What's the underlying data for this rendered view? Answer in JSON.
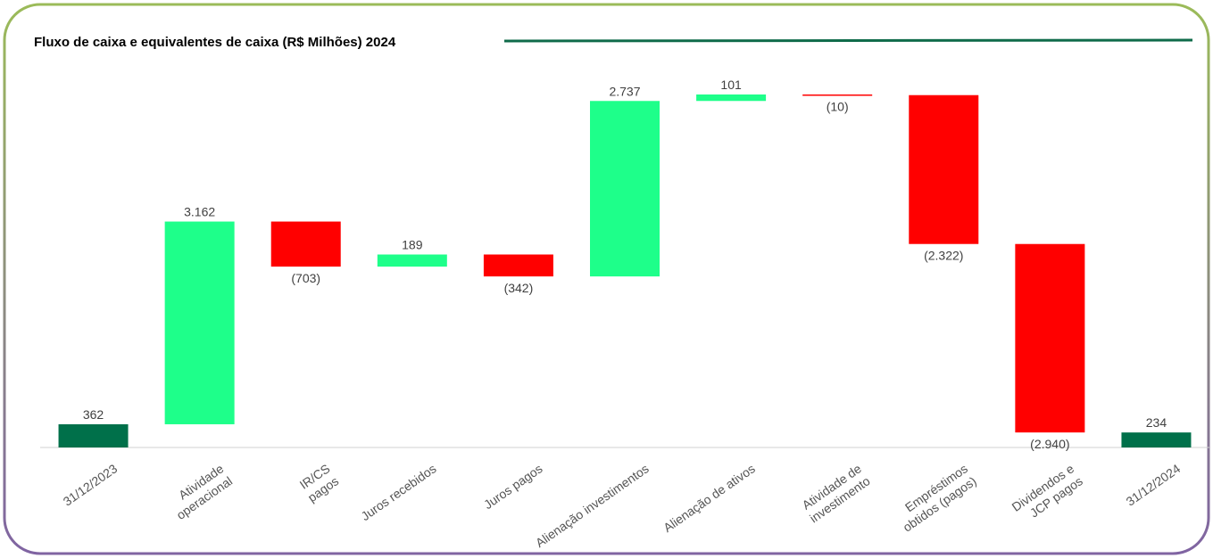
{
  "chart_data": {
    "type": "waterfall",
    "title": "Fluxo de caixa e equivalentes de caixa (R$ Milhões) 2024",
    "categories": [
      "31/12/2023",
      "Atividade\noperacional",
      "IR/CS\npagos",
      "Juros recebidos",
      "Juros pagos",
      "Alienação investimentos",
      "Alienação de ativos",
      "Atividade de\ninvestimento",
      "Empréstimos\nobtidos (pagos)",
      "Dividendos e\nJCP pagos",
      "31/12/2024"
    ],
    "values": [
      362,
      3162,
      -703,
      189,
      -342,
      2737,
      101,
      -10,
      -2322,
      -2940,
      234
    ],
    "value_labels": [
      "362",
      "3.162",
      "(703)",
      "189",
      "(342)",
      "2.737",
      "101",
      "(10)",
      "(2.322)",
      "(2.940)",
      "234"
    ],
    "measures": [
      "absolute",
      "relative",
      "relative",
      "relative",
      "relative",
      "relative",
      "relative",
      "relative",
      "relative",
      "relative",
      "total"
    ],
    "colors": {
      "total": "#00704a",
      "increase": "#1eff8a",
      "decrease": "#ff0000"
    }
  }
}
